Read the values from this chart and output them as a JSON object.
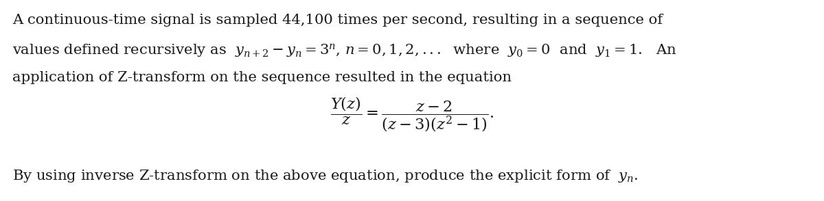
{
  "figsize": [
    12.0,
    2.94
  ],
  "dpi": 100,
  "background_color": "#ffffff",
  "text_color": "#1a1a1a",
  "font_size_body": 15.2,
  "line1": "A continuous-time signal is sampled 44,100 times per second, resulting in a sequence of",
  "line2": "values defined recursively as  $y_{n+2}-y_{n}=3^n$, $n=0,1,2,...$  where  $y_0=0$  and  $y_1=1$.   An",
  "line3": "application of Z-transform on the sequence resulted in the equation",
  "equation": "$\\dfrac{Y(z)}{z}=\\dfrac{z-2}{(z-3)(z^2-1)}.$",
  "line4": "By using inverse Z-transform on the above equation, produce the explicit form of  $y_n$."
}
